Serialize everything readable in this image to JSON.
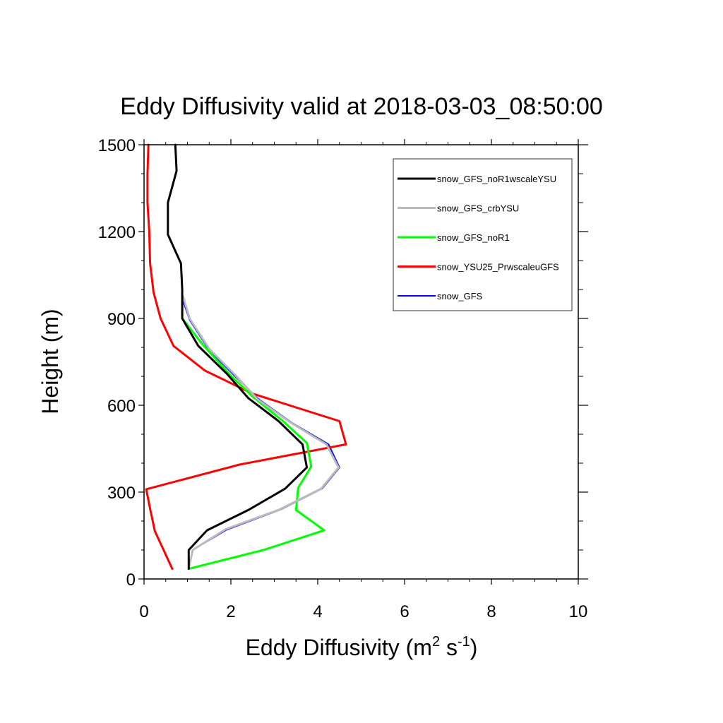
{
  "chart_data": {
    "type": "line",
    "title": "Eddy Diffusivity valid at 2018-03-03_08:50:00",
    "xlabel": {
      "base": "Eddy Diffusivity (m",
      "sup1": "2",
      "mid": " s",
      "sup2": "-1",
      "end": ")"
    },
    "ylabel": "Height (m)",
    "xlim": [
      0,
      10
    ],
    "ylim": [
      0,
      1500
    ],
    "xticks": [
      0,
      2,
      4,
      6,
      8,
      10
    ],
    "yticks": [
      0,
      300,
      600,
      900,
      1200,
      1500
    ],
    "xtick_labels": [
      "0",
      "2",
      "4",
      "6",
      "8",
      "10"
    ],
    "ytick_labels": [
      "0",
      "300",
      "600",
      "900",
      "1200",
      "1500"
    ],
    "grid": false,
    "legend_position": "top-right",
    "series": [
      {
        "name": "snow_GFS",
        "color": "#0000ff",
        "width": 2,
        "points": [
          [
            1.03,
            35
          ],
          [
            1.12,
            100
          ],
          [
            1.9,
            170
          ],
          [
            3.15,
            240
          ],
          [
            4.1,
            312
          ],
          [
            4.5,
            385
          ],
          [
            4.25,
            465
          ],
          [
            3.4,
            540
          ],
          [
            2.65,
            620
          ],
          [
            2.1,
            700
          ],
          [
            1.5,
            790
          ],
          [
            1.05,
            895
          ],
          [
            0.9,
            960
          ]
        ]
      },
      {
        "name": "snow_YSU25_PrwscaleuGFS",
        "color": "#ff0000",
        "width": 3,
        "points": [
          [
            0.65,
            35
          ],
          [
            0.45,
            100
          ],
          [
            0.25,
            165
          ],
          [
            0.15,
            235
          ],
          [
            0.05,
            310
          ],
          [
            2.2,
            395
          ],
          [
            4.65,
            465
          ],
          [
            4.5,
            545
          ],
          [
            2.5,
            640
          ],
          [
            1.4,
            720
          ],
          [
            0.68,
            805
          ],
          [
            0.38,
            900
          ],
          [
            0.22,
            990
          ],
          [
            0.14,
            1090
          ],
          [
            0.12,
            1200
          ],
          [
            0.08,
            1300
          ],
          [
            0.08,
            1400
          ],
          [
            0.1,
            1500
          ]
        ]
      },
      {
        "name": "snow_GFS_noR1",
        "color": "#00ff00",
        "width": 3,
        "points": [
          [
            1.03,
            35
          ],
          [
            2.75,
            100
          ],
          [
            4.15,
            168
          ],
          [
            3.5,
            238
          ],
          [
            3.55,
            315
          ],
          [
            3.85,
            388
          ],
          [
            3.75,
            470
          ],
          [
            3.2,
            545
          ],
          [
            2.5,
            630
          ],
          [
            1.95,
            710
          ],
          [
            1.35,
            810
          ],
          [
            0.88,
            900
          ],
          [
            0.88,
            960
          ]
        ]
      },
      {
        "name": "snow_GFS_crbYSU",
        "color": "#bbbbbb",
        "width": 3,
        "points": [
          [
            1.03,
            35
          ],
          [
            1.12,
            100
          ],
          [
            1.88,
            172
          ],
          [
            3.12,
            240
          ],
          [
            4.08,
            312
          ],
          [
            4.48,
            385
          ],
          [
            4.2,
            465
          ],
          [
            3.38,
            540
          ],
          [
            2.62,
            620
          ],
          [
            2.1,
            705
          ],
          [
            1.5,
            795
          ],
          [
            1.05,
            900
          ],
          [
            0.9,
            975
          ]
        ]
      },
      {
        "name": "snow_GFS_noR1wscaleYSU",
        "color": "#000000",
        "width": 3,
        "points": [
          [
            1.03,
            35
          ],
          [
            1.03,
            100
          ],
          [
            1.45,
            168
          ],
          [
            2.4,
            238
          ],
          [
            3.25,
            312
          ],
          [
            3.75,
            385
          ],
          [
            3.65,
            465
          ],
          [
            3.1,
            545
          ],
          [
            2.4,
            625
          ],
          [
            1.9,
            710
          ],
          [
            1.25,
            805
          ],
          [
            0.88,
            900
          ],
          [
            0.88,
            1000
          ],
          [
            0.85,
            1090
          ],
          [
            0.55,
            1190
          ],
          [
            0.55,
            1300
          ],
          [
            0.75,
            1410
          ],
          [
            0.72,
            1500
          ]
        ]
      }
    ],
    "legend": [
      {
        "name": "snow_GFS_noR1wscaleYSU",
        "color": "#000000",
        "width": 3
      },
      {
        "name": "snow_GFS_crbYSU",
        "color": "#bbbbbb",
        "width": 3
      },
      {
        "name": "snow_GFS_noR1",
        "color": "#00ff00",
        "width": 3
      },
      {
        "name": "snow_YSU25_PrwscaleuGFS",
        "color": "#ff0000",
        "width": 3
      },
      {
        "name": "snow_GFS",
        "color": "#0000ff",
        "width": 2
      }
    ]
  }
}
